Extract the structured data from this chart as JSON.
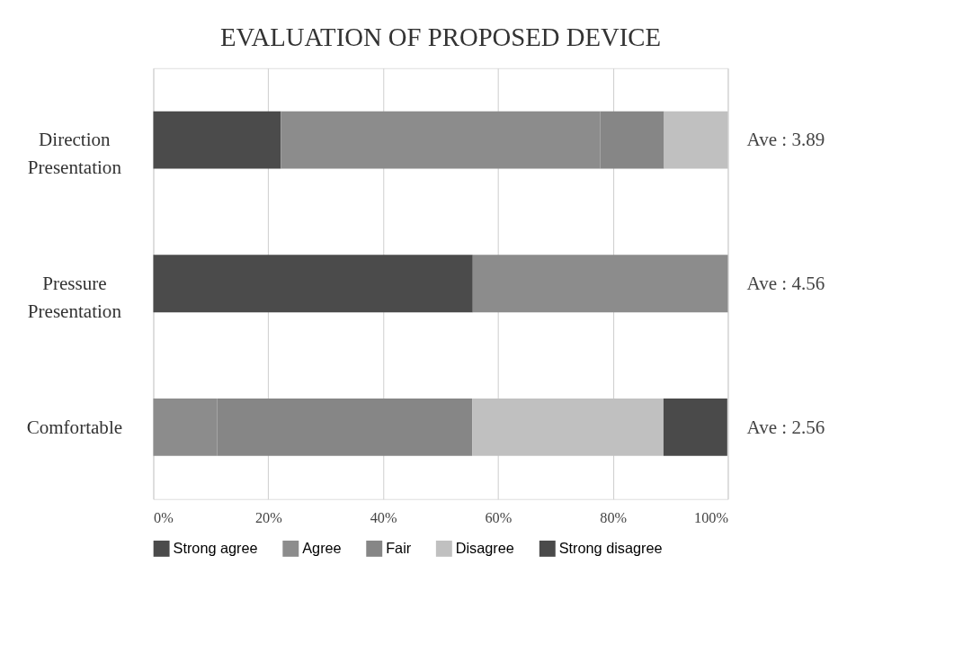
{
  "chart_data": {
    "type": "bar",
    "orientation": "horizontal",
    "stacked": true,
    "title": "EVALUATION OF PROPOSED DEVICE",
    "categories": [
      "Direction Presentation",
      "Pressure Presentation",
      "Comfortable"
    ],
    "series": [
      {
        "name": "Strong agree",
        "color": "#4b4b4b",
        "values": [
          22.2,
          55.6,
          0
        ]
      },
      {
        "name": "Agree",
        "color": "#8c8c8c",
        "values": [
          55.6,
          44.4,
          11.1
        ]
      },
      {
        "name": "Fair",
        "color": "#868686",
        "values": [
          11.1,
          0,
          44.4
        ]
      },
      {
        "name": "Disagree",
        "color": "#c0c0c0",
        "values": [
          11.1,
          0,
          33.3
        ]
      },
      {
        "name": "Strong disagree",
        "color": "#4a4a4a",
        "values": [
          0,
          0,
          11.1
        ]
      }
    ],
    "xlim": [
      0,
      100
    ],
    "xticks": [
      {
        "value": 0,
        "label": "0%"
      },
      {
        "value": 20,
        "label": "20%"
      },
      {
        "value": 40,
        "label": "40%"
      },
      {
        "value": 60,
        "label": "60%"
      },
      {
        "value": 80,
        "label": "80%"
      },
      {
        "value": 100,
        "label": "100%"
      }
    ],
    "annotations": [
      "Ave : 3.89",
      "Ave : 4.56",
      "Ave : 2.56"
    ],
    "grid": "x",
    "legend": "bottom"
  }
}
